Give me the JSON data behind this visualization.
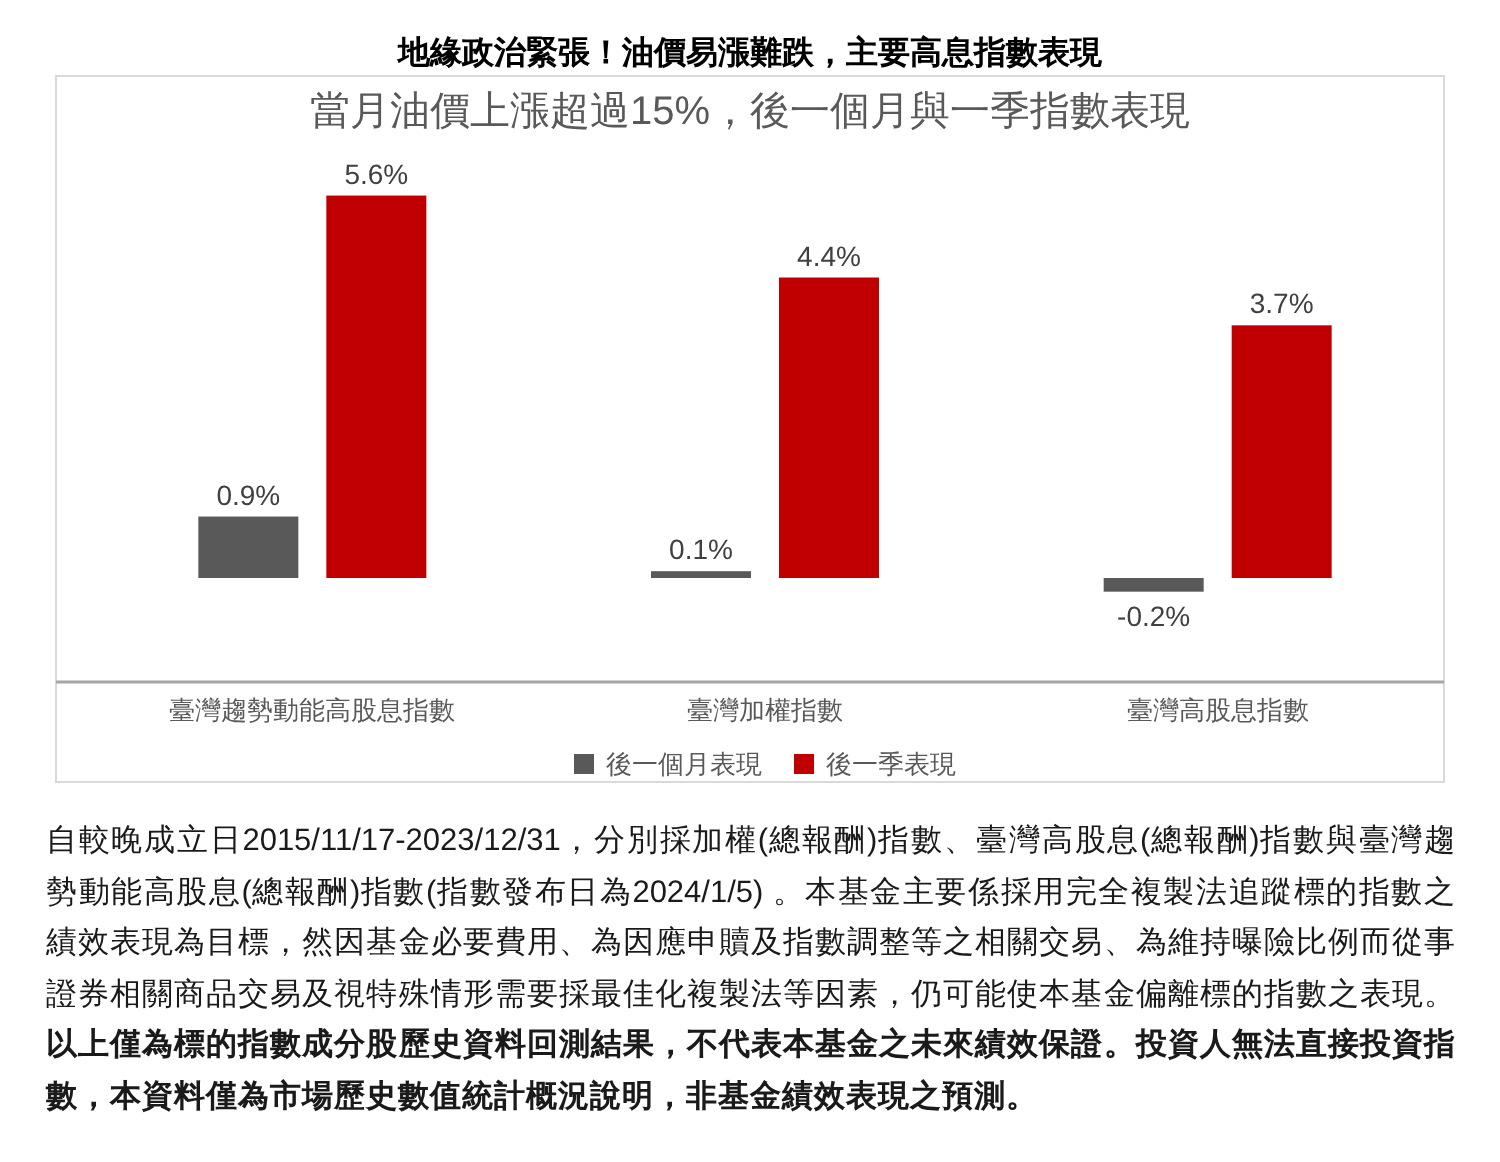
{
  "chart_data": {
    "type": "bar",
    "title": "地緣政治緊張！油價易漲難跌，主要高息指數表現",
    "subtitle": "當月油價上漲超過15%，後一個月與一季指數表現",
    "categories": [
      "臺灣趨勢動能高股息指數",
      "臺灣加權指數",
      "臺灣高股息指數"
    ],
    "series": [
      {
        "name": "後一個月表現",
        "color": "#595959",
        "values": [
          0.9,
          0.1,
          -0.2
        ],
        "value_labels": [
          "0.9%",
          "0.1%",
          "-0.2%"
        ]
      },
      {
        "name": "後一季表現",
        "color": "#c00000",
        "values": [
          5.6,
          4.4,
          3.7
        ],
        "value_labels": [
          "5.6%",
          "4.4%",
          "3.7%"
        ]
      }
    ],
    "tick_labels": "x",
    "legend": "bottom",
    "annotations": [
      "自較晚成立日2015/11/17-2023/12/31，分別採加權(總報酬)指數、臺灣高股息(總報酬)指數與臺灣趨勢動能高股息(總報酬)指數(指數發布日為2024/1/5) 。本基金主要係採用完全複製法追蹤標的指數之績效表現為目標，然因基金必要費用、為因應申贖及指數調整等之相關交易、為維持曝險比例而從事證券相關商品交易及視特殊情形需要採最佳化複製法等因素，仍可能使本基金偏離標的指數之表現。",
      "以上僅為標的指數成分股歷史資料回測結果，不代表本基金之未來績效保證。投資人無法直接投資指數，本資料僅為市場歷史數值統計概況說明，非基金績效表現之預測。"
    ]
  }
}
